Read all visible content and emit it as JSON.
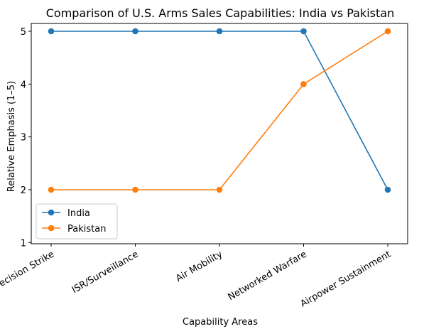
{
  "chart_data": {
    "type": "line",
    "title": "Comparison of U.S. Arms Sales Capabilities: India vs Pakistan",
    "xlabel": "Capability Areas",
    "ylabel": "Relative Emphasis (1–5)",
    "categories": [
      "Precision Strike",
      "ISR/Surveillance",
      "Air Mobility",
      "Networked Warfare",
      "Airpower Sustainment"
    ],
    "series": [
      {
        "name": "India",
        "values": [
          5,
          5,
          5,
          5,
          2
        ],
        "color": "#1f77b4"
      },
      {
        "name": "Pakistan",
        "values": [
          2,
          2,
          2,
          4,
          5
        ],
        "color": "#ff7f0e"
      }
    ],
    "ylim": [
      1,
      5
    ],
    "yticks": [
      "1",
      "2",
      "3",
      "4",
      "5"
    ],
    "grid": false,
    "legend_position": "lower-left",
    "marker": "circle"
  }
}
